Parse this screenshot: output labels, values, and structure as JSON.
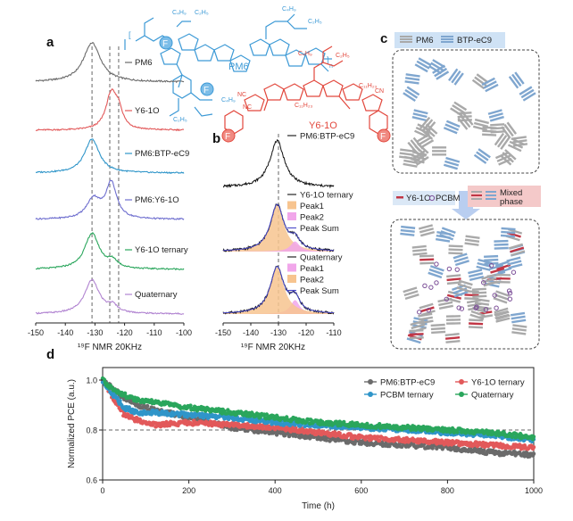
{
  "panels": {
    "a": "a",
    "b": "b",
    "c": "c",
    "d": "d"
  },
  "structures": {
    "pm6_label": "PM6",
    "y6_label": "Y6-1O",
    "blue": "#3d9ad6",
    "red": "#e2483d",
    "atoms": {
      "c4h9": "C₄H₉",
      "c2h5": "C₂H₅",
      "c4h9b": "C₄H₉",
      "c2h5b": "C₂H₅",
      "f": "F",
      "s": "S",
      "n": "N",
      "nc": "NC",
      "cn": "CN",
      "c11h23": "C₁₁H₂₃",
      "o": "O"
    }
  },
  "colors": {
    "pm6": "#6b6b6b",
    "y6": "#e2595a",
    "pm6_btp": "#2f95c9",
    "pm6_y6": "#6f6fcf",
    "ternary": "#2aa65c",
    "quaternary": "#b184d1",
    "peak1": "#f7c48f",
    "peak2": "#f1a6ea",
    "peak_sum": "#4848c8",
    "bar_blue": "#7fa6cf",
    "bar_gray": "#a9a9a9",
    "bar_red": "#c13645",
    "dot_purple": "#7c4f98",
    "c_header_bg": "#cfe2f5",
    "c_legend_bg": "#f4c9c9"
  },
  "panel_a": {
    "chart_data": {
      "type": "line",
      "xlabel": "¹⁹F NMR 20KHz",
      "xlim": [
        -150,
        -100
      ],
      "xticks": [
        "-150",
        "-140",
        "-130",
        "-120",
        "-110",
        "-100"
      ],
      "dashed_lines_x": [
        -131,
        -125,
        -122
      ],
      "series": [
        {
          "name": "PM6",
          "peaks": [
            {
              "center": -131,
              "width": 3.5,
              "height": 1.0
            }
          ]
        },
        {
          "name": "Y6-1O",
          "peaks": [
            {
              "center": -124.5,
              "width": 2.2,
              "height": 1.0
            },
            {
              "center": -122,
              "width": 1.6,
              "height": 0.45
            }
          ]
        },
        {
          "name": "PM6:BTP-eC9",
          "peaks": [
            {
              "center": -131,
              "width": 3.0,
              "height": 1.0
            }
          ]
        },
        {
          "name": "PM6:Y6-1O",
          "peaks": [
            {
              "center": -130.5,
              "width": 2.8,
              "height": 0.55
            },
            {
              "center": -124.5,
              "width": 2.2,
              "height": 1.0
            }
          ]
        },
        {
          "name": "Y6-1O ternary",
          "peaks": [
            {
              "center": -131,
              "width": 3.0,
              "height": 1.0
            },
            {
              "center": -124,
              "width": 2.0,
              "height": 0.2
            }
          ]
        },
        {
          "name": "Quaternary",
          "peaks": [
            {
              "center": -131,
              "width": 3.0,
              "height": 1.0
            },
            {
              "center": -124,
              "width": 2.0,
              "height": 0.2
            }
          ]
        }
      ]
    }
  },
  "panel_b": {
    "chart_data": {
      "type": "area",
      "xlabel": "¹⁹F NMR 20KHz",
      "xlim": [
        -150,
        -110
      ],
      "xticks": [
        "-150",
        "-140",
        "-130",
        "-120",
        "-110"
      ],
      "dashed_line_x": -130,
      "groups": [
        {
          "title": "PM6:BTP-eC9",
          "legend": [
            "PM6:BTP-eC9"
          ]
        },
        {
          "title": "Y6-1O ternary",
          "legend": [
            "Y6-1O ternary",
            "Peak1",
            "Peak2",
            "Peak Sum"
          ],
          "peak1": {
            "center": -130.5,
            "width": 3.0,
            "height": 1.0
          },
          "peak2": {
            "center": -124,
            "width": 2.0,
            "height": 0.22
          }
        },
        {
          "title": "Quaternary",
          "legend": [
            "Quaternary",
            "Peak1",
            "Peak2",
            "Peak Sum"
          ],
          "peak1": {
            "center": -124,
            "width": 2.0,
            "height": 0.3
          },
          "peak2": {
            "center": -130.5,
            "width": 3.0,
            "height": 1.0
          }
        }
      ]
    }
  },
  "panel_c": {
    "header_items": [
      "PM6",
      "BTP-eC9"
    ],
    "legend_items": [
      "Y6-1O",
      "PCBM",
      "Mixed phase"
    ]
  },
  "panel_d": {
    "chart_data": {
      "type": "line",
      "xlabel": "Time (h)",
      "ylabel": "Normalized PCE (a.u.)",
      "xlim": [
        0,
        1000
      ],
      "ylim": [
        0.6,
        1.05
      ],
      "xticks": [
        "0",
        "200",
        "400",
        "600",
        "800",
        "1000"
      ],
      "yticks": [
        "0.6",
        "0.8",
        "1.0"
      ],
      "reference_line_y": 0.8,
      "series": [
        {
          "name": "PM6:BTP-eC9",
          "color": "#6b6b6b",
          "x": [
            0,
            20,
            50,
            80,
            120,
            200,
            300,
            400,
            500,
            600,
            700,
            800,
            900,
            1000
          ],
          "y": [
            1.0,
            0.97,
            0.93,
            0.9,
            0.88,
            0.85,
            0.81,
            0.79,
            0.77,
            0.75,
            0.74,
            0.73,
            0.71,
            0.7
          ]
        },
        {
          "name": "Y6-1O ternary",
          "color": "#e2595a",
          "x": [
            0,
            20,
            50,
            80,
            120,
            200,
            300,
            400,
            500,
            600,
            700,
            800,
            900,
            1000
          ],
          "y": [
            1.0,
            0.94,
            0.86,
            0.84,
            0.82,
            0.83,
            0.82,
            0.81,
            0.79,
            0.77,
            0.76,
            0.75,
            0.74,
            0.73
          ]
        },
        {
          "name": "PCBM ternary",
          "color": "#2f95c9",
          "x": [
            0,
            20,
            50,
            80,
            120,
            200,
            300,
            400,
            500,
            600,
            700,
            800,
            900,
            1000
          ],
          "y": [
            1.0,
            0.95,
            0.89,
            0.87,
            0.87,
            0.86,
            0.85,
            0.83,
            0.82,
            0.81,
            0.8,
            0.79,
            0.78,
            0.76
          ]
        },
        {
          "name": "Quaternary",
          "color": "#2aa65c",
          "x": [
            0,
            20,
            50,
            80,
            120,
            200,
            300,
            400,
            500,
            600,
            700,
            800,
            900,
            1000
          ],
          "y": [
            1.0,
            0.97,
            0.94,
            0.92,
            0.91,
            0.89,
            0.87,
            0.85,
            0.83,
            0.82,
            0.81,
            0.8,
            0.79,
            0.77
          ]
        }
      ]
    }
  }
}
